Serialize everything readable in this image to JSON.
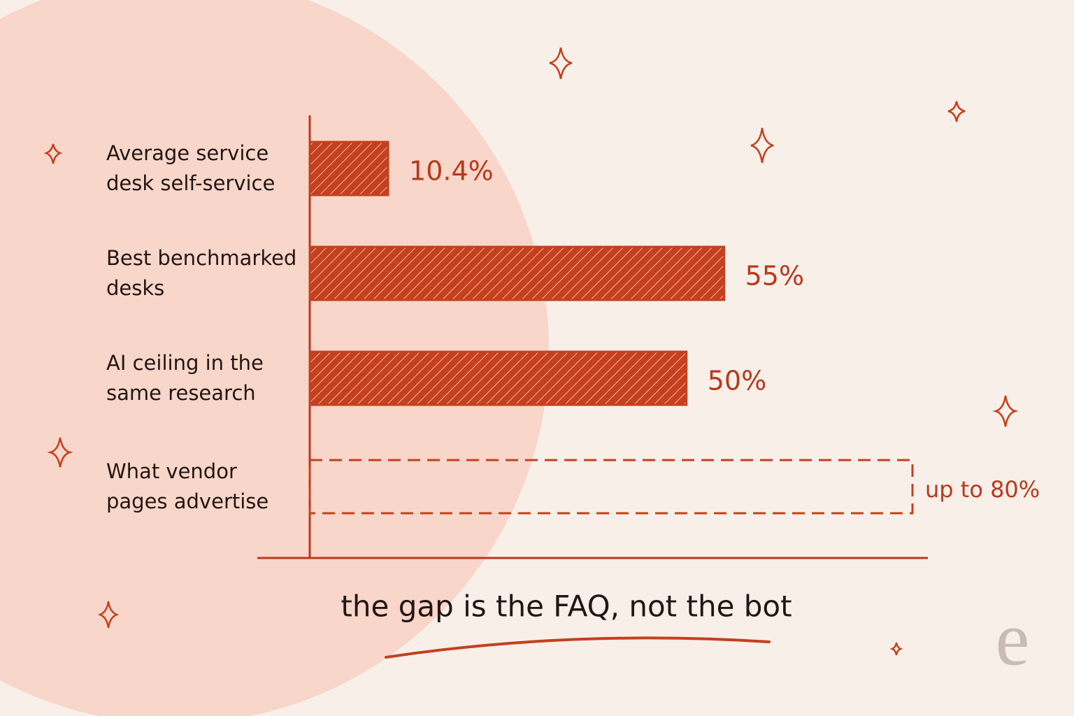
{
  "chart_data": {
    "type": "hbar",
    "categories": [
      "Average service desk self-service",
      "Best benchmarked desks",
      "AI ceiling in the same research",
      "What vendor pages advertise"
    ],
    "values": [
      10.4,
      55,
      50,
      80
    ],
    "value_labels": [
      "10.4%",
      "55%",
      "50%",
      "up to 80%"
    ],
    "styles": [
      "solid",
      "solid",
      "solid",
      "dashed"
    ],
    "color": "#c4401e",
    "xlim": [
      0,
      80
    ],
    "annotation": "the gap is the FAQ, not the bot"
  },
  "watermark": "e"
}
